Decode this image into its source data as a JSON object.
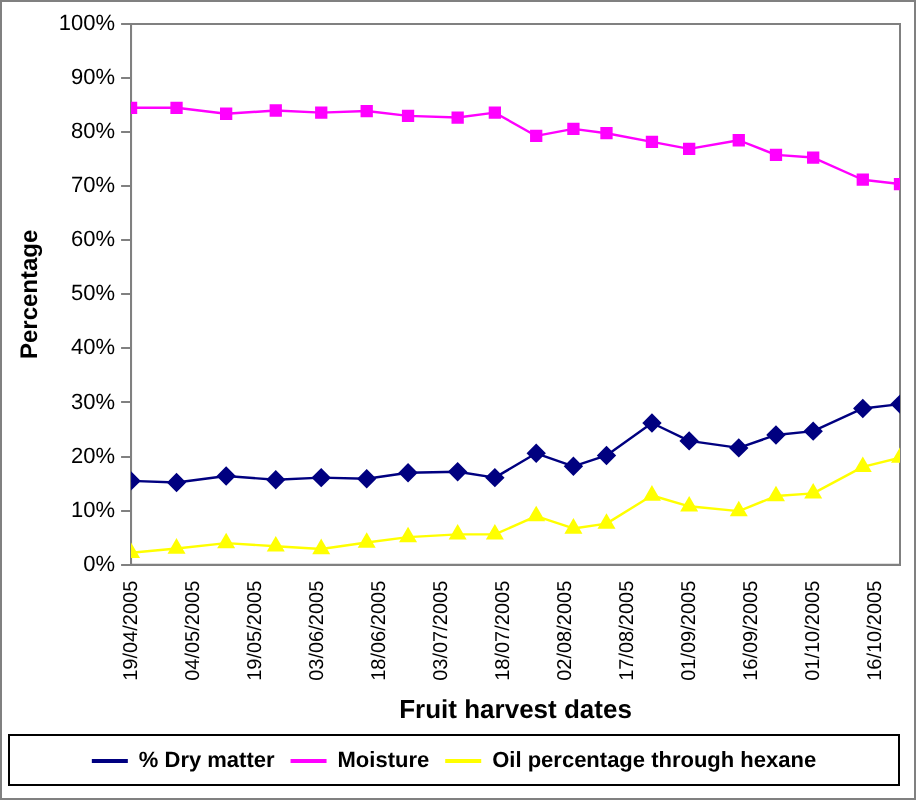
{
  "chart_data": {
    "type": "line",
    "xlabel": "Fruit harvest dates",
    "ylabel": "Percentage",
    "x": [
      "2005-04-19",
      "2005-04-30",
      "2005-05-12",
      "2005-05-24",
      "2005-06-04",
      "2005-06-15",
      "2005-06-25",
      "2005-07-07",
      "2005-07-16",
      "2005-07-26",
      "2005-08-04",
      "2005-08-12",
      "2005-08-23",
      "2005-09-01",
      "2005-09-13",
      "2005-09-22",
      "2005-10-01",
      "2005-10-13",
      "2005-10-22"
    ],
    "series": [
      {
        "name": "% Dry matter",
        "color": "#000080",
        "marker": "diamond",
        "values": [
          15.5,
          15.2,
          16.4,
          15.7,
          16.1,
          15.9,
          17.0,
          17.2,
          16.1,
          20.6,
          18.2,
          20.2,
          26.2,
          22.9,
          21.6,
          24.0,
          24.7,
          28.9,
          29.7
        ]
      },
      {
        "name": "Moisture",
        "color": "#ff00ff",
        "marker": "square",
        "values": [
          84.5,
          84.5,
          83.4,
          84.0,
          83.6,
          83.9,
          83.0,
          82.7,
          83.6,
          79.3,
          80.6,
          79.8,
          78.2,
          76.9,
          78.5,
          75.8,
          75.3,
          71.2,
          70.4
        ]
      },
      {
        "name": "Oil percentage through hexane",
        "color": "#ffff00",
        "marker": "triangle",
        "values": [
          2.2,
          3.0,
          4.0,
          3.4,
          2.9,
          4.1,
          5.1,
          5.6,
          5.6,
          9.0,
          6.7,
          7.6,
          12.8,
          10.8,
          9.9,
          12.7,
          13.2,
          18.1,
          19.8
        ]
      }
    ],
    "xlim": [
      "2005-04-19",
      "2005-10-22"
    ],
    "xticks": [
      {
        "value": "2005-04-19",
        "label": "19/04/2005"
      },
      {
        "value": "2005-05-04",
        "label": "04/05/2005"
      },
      {
        "value": "2005-05-19",
        "label": "19/05/2005"
      },
      {
        "value": "2005-06-03",
        "label": "03/06/2005"
      },
      {
        "value": "2005-06-18",
        "label": "18/06/2005"
      },
      {
        "value": "2005-07-03",
        "label": "03/07/2005"
      },
      {
        "value": "2005-07-18",
        "label": "18/07/2005"
      },
      {
        "value": "2005-08-02",
        "label": "02/08/2005"
      },
      {
        "value": "2005-08-17",
        "label": "17/08/2005"
      },
      {
        "value": "2005-09-01",
        "label": "01/09/2005"
      },
      {
        "value": "2005-09-16",
        "label": "16/09/2005"
      },
      {
        "value": "2005-10-01",
        "label": "01/10/2005"
      },
      {
        "value": "2005-10-16",
        "label": "16/10/2005"
      }
    ],
    "ylim": [
      0,
      100
    ],
    "yticks": [
      {
        "value": 0,
        "label": "0%"
      },
      {
        "value": 10,
        "label": "10%"
      },
      {
        "value": 20,
        "label": "20%"
      },
      {
        "value": 30,
        "label": "30%"
      },
      {
        "value": 40,
        "label": "40%"
      },
      {
        "value": 50,
        "label": "50%"
      },
      {
        "value": 60,
        "label": "60%"
      },
      {
        "value": 70,
        "label": "70%"
      },
      {
        "value": 80,
        "label": "80%"
      },
      {
        "value": 90,
        "label": "90%"
      },
      {
        "value": 100,
        "label": "100%"
      }
    ],
    "grid": false,
    "legend": "bottom",
    "line_style": "solid"
  }
}
